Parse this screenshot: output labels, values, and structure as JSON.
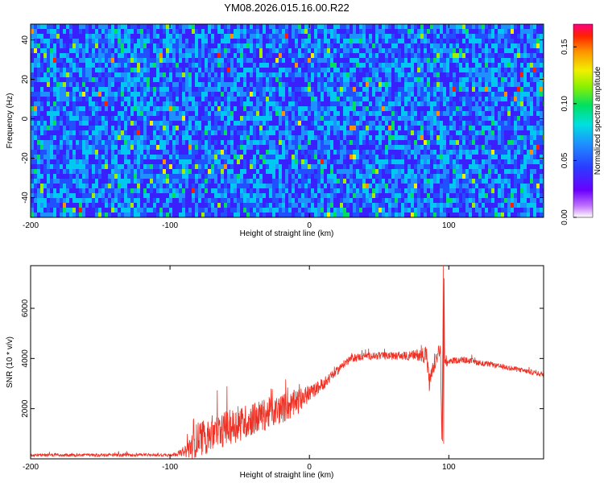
{
  "figure_title": "YM08.2026.015.16.00.R22",
  "chart_data": [
    {
      "type": "heatmap",
      "title": "YM08.2026.015.16.00.R22",
      "xlabel": "Height of straight line (km)",
      "ylabel": "Frequency (Hz)",
      "xlim": [
        -200,
        168
      ],
      "ylim": [
        -50,
        48
      ],
      "x_ticks": [
        -200,
        -100,
        0,
        100
      ],
      "x_tick_labels": [
        "-200",
        "-100",
        "0",
        "100"
      ],
      "y_ticks": [
        -40,
        -20,
        0,
        20,
        40
      ],
      "y_tick_labels": [
        "-40",
        "-20",
        "0",
        "20",
        "40"
      ],
      "colorbar": {
        "label": "Normalized spectral amplitude",
        "range": [
          0,
          0.17
        ],
        "ticks": [
          0,
          0.05,
          0.1,
          0.15
        ],
        "tick_labels": [
          "0.00",
          "0.05",
          "0.10",
          "0.15"
        ],
        "colormap": "rainbow"
      },
      "description": "noise-like spectrogram; values mostly 0.02-0.06 with sparse peaks near 0.1-0.15"
    },
    {
      "type": "line",
      "xlabel": "Height of straight line (km)",
      "ylabel": "SNR (10 * v/v)",
      "xlim": [
        -200,
        168
      ],
      "ylim": [
        0,
        7700
      ],
      "x_ticks": [
        -200,
        -100,
        0,
        100
      ],
      "x_tick_labels": [
        "-200",
        "-100",
        "0",
        "100"
      ],
      "y_ticks": [
        2000,
        4000,
        6000
      ],
      "y_tick_labels": [
        "2000",
        "4000",
        "6000"
      ],
      "series": [
        {
          "name": "SNR",
          "color": "#ee3124",
          "x": [
            -200,
            -150,
            -100,
            -90,
            -85,
            -80,
            -75,
            -70,
            -65,
            -60,
            -50,
            -40,
            -30,
            -20,
            -10,
            -5,
            0,
            10,
            20,
            25,
            30,
            40,
            50,
            60,
            70,
            80,
            84,
            86,
            90,
            94,
            95,
            96,
            97,
            98,
            100,
            110,
            120,
            130,
            140,
            150,
            160,
            168
          ],
          "y": [
            150,
            150,
            160,
            250,
            500,
            800,
            900,
            1000,
            1100,
            1200,
            1400,
            1600,
            1800,
            2000,
            2200,
            2400,
            2600,
            3000,
            3500,
            3800,
            4000,
            4100,
            4100,
            4100,
            4100,
            4150,
            4200,
            3000,
            3800,
            4400,
            700,
            5500,
            4000,
            3700,
            3900,
            3950,
            3850,
            3750,
            3650,
            3550,
            3450,
            3350
          ],
          "noise_amplitude": [
            120,
            120,
            120,
            300,
            1100,
            1400,
            1500,
            1600,
            1400,
            1400,
            1400,
            1300,
            1300,
            1200,
            1100,
            900,
            600,
            500,
            350,
            300,
            300,
            300,
            300,
            300,
            350,
            500,
            900,
            700,
            500,
            500,
            0,
            1500,
            500,
            350,
            250,
            250,
            250,
            200,
            200,
            200,
            200,
            200
          ]
        }
      ]
    }
  ]
}
